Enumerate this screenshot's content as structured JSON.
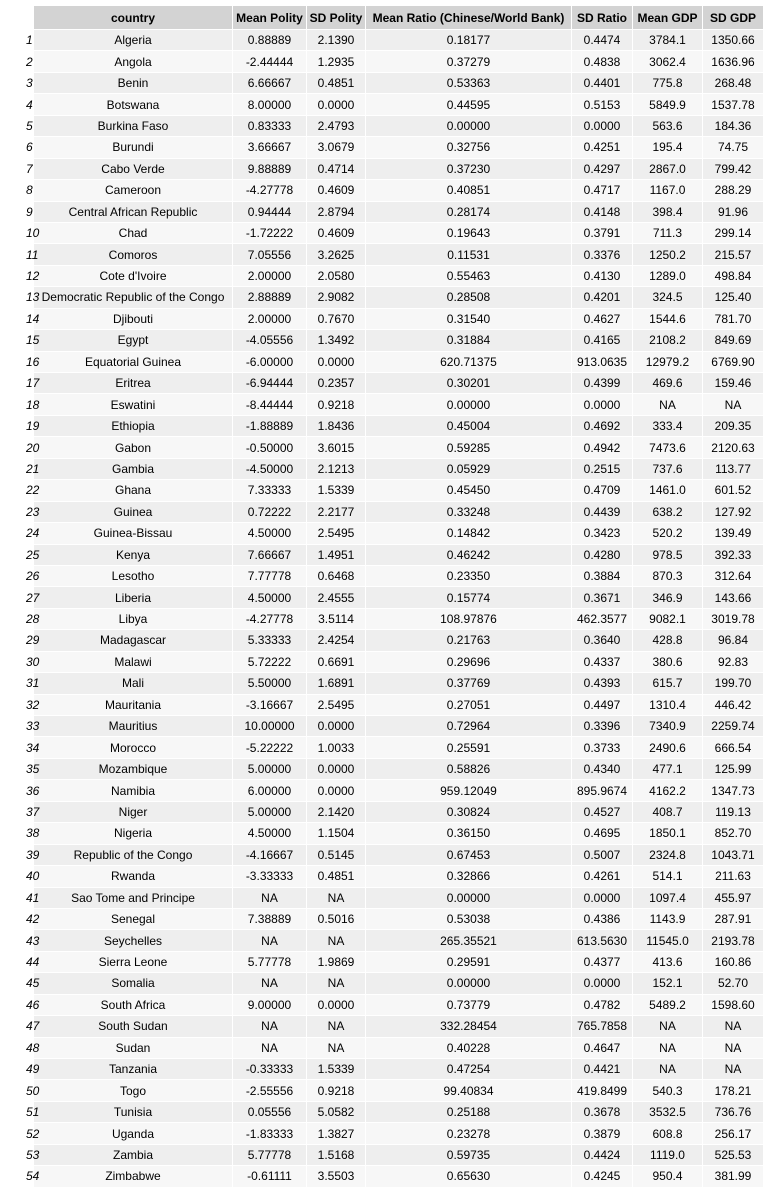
{
  "table": {
    "headers": [
      "",
      "country",
      "Mean Polity",
      "SD Polity",
      "Mean Ratio (Chinese/World Bank)",
      "SD Ratio",
      "Mean GDP",
      "SD GDP"
    ],
    "rows": [
      [
        "1",
        "Algeria",
        "0.88889",
        "2.1390",
        "0.18177",
        "0.4474",
        "3784.1",
        "1350.66"
      ],
      [
        "2",
        "Angola",
        "-2.44444",
        "1.2935",
        "0.37279",
        "0.4838",
        "3062.4",
        "1636.96"
      ],
      [
        "3",
        "Benin",
        "6.66667",
        "0.4851",
        "0.53363",
        "0.4401",
        "775.8",
        "268.48"
      ],
      [
        "4",
        "Botswana",
        "8.00000",
        "0.0000",
        "0.44595",
        "0.5153",
        "5849.9",
        "1537.78"
      ],
      [
        "5",
        "Burkina Faso",
        "0.83333",
        "2.4793",
        "0.00000",
        "0.0000",
        "563.6",
        "184.36"
      ],
      [
        "6",
        "Burundi",
        "3.66667",
        "3.0679",
        "0.32756",
        "0.4251",
        "195.4",
        "74.75"
      ],
      [
        "7",
        "Cabo Verde",
        "9.88889",
        "0.4714",
        "0.37230",
        "0.4297",
        "2867.0",
        "799.42"
      ],
      [
        "8",
        "Cameroon",
        "-4.27778",
        "0.4609",
        "0.40851",
        "0.4717",
        "1167.0",
        "288.29"
      ],
      [
        "9",
        "Central African Republic",
        "0.94444",
        "2.8794",
        "0.28174",
        "0.4148",
        "398.4",
        "91.96"
      ],
      [
        "10",
        "Chad",
        "-1.72222",
        "0.4609",
        "0.19643",
        "0.3791",
        "711.3",
        "299.14"
      ],
      [
        "11",
        "Comoros",
        "7.05556",
        "3.2625",
        "0.11531",
        "0.3376",
        "1250.2",
        "215.57"
      ],
      [
        "12",
        "Cote d'Ivoire",
        "2.00000",
        "2.0580",
        "0.55463",
        "0.4130",
        "1289.0",
        "498.84"
      ],
      [
        "13",
        "Democratic Republic of the Congo",
        "2.88889",
        "2.9082",
        "0.28508",
        "0.4201",
        "324.5",
        "125.40"
      ],
      [
        "14",
        "Djibouti",
        "2.00000",
        "0.7670",
        "0.31540",
        "0.4627",
        "1544.6",
        "781.70"
      ],
      [
        "15",
        "Egypt",
        "-4.05556",
        "1.3492",
        "0.31884",
        "0.4165",
        "2108.2",
        "849.69"
      ],
      [
        "16",
        "Equatorial Guinea",
        "-6.00000",
        "0.0000",
        "620.71375",
        "913.0635",
        "12979.2",
        "6769.90"
      ],
      [
        "17",
        "Eritrea",
        "-6.94444",
        "0.2357",
        "0.30201",
        "0.4399",
        "469.6",
        "159.46"
      ],
      [
        "18",
        "Eswatini",
        "-8.44444",
        "0.9218",
        "0.00000",
        "0.0000",
        "NA",
        "NA"
      ],
      [
        "19",
        "Ethiopia",
        "-1.88889",
        "1.8436",
        "0.45004",
        "0.4692",
        "333.4",
        "209.35"
      ],
      [
        "20",
        "Gabon",
        "-0.50000",
        "3.6015",
        "0.59285",
        "0.4942",
        "7473.6",
        "2120.63"
      ],
      [
        "21",
        "Gambia",
        "-4.50000",
        "2.1213",
        "0.05929",
        "0.2515",
        "737.6",
        "113.77"
      ],
      [
        "22",
        "Ghana",
        "7.33333",
        "1.5339",
        "0.45450",
        "0.4709",
        "1461.0",
        "601.52"
      ],
      [
        "23",
        "Guinea",
        "0.72222",
        "2.2177",
        "0.33248",
        "0.4439",
        "638.2",
        "127.92"
      ],
      [
        "24",
        "Guinea-Bissau",
        "4.50000",
        "2.5495",
        "0.14842",
        "0.3423",
        "520.2",
        "139.49"
      ],
      [
        "25",
        "Kenya",
        "7.66667",
        "1.4951",
        "0.46242",
        "0.4280",
        "978.5",
        "392.33"
      ],
      [
        "26",
        "Lesotho",
        "7.77778",
        "0.6468",
        "0.23350",
        "0.3884",
        "870.3",
        "312.64"
      ],
      [
        "27",
        "Liberia",
        "4.50000",
        "2.4555",
        "0.15774",
        "0.3671",
        "346.9",
        "143.66"
      ],
      [
        "28",
        "Libya",
        "-4.27778",
        "3.5114",
        "108.97876",
        "462.3577",
        "9082.1",
        "3019.78"
      ],
      [
        "29",
        "Madagascar",
        "5.33333",
        "2.4254",
        "0.21763",
        "0.3640",
        "428.8",
        "96.84"
      ],
      [
        "30",
        "Malawi",
        "5.72222",
        "0.6691",
        "0.29696",
        "0.4337",
        "380.6",
        "92.83"
      ],
      [
        "31",
        "Mali",
        "5.50000",
        "1.6891",
        "0.37769",
        "0.4393",
        "615.7",
        "199.70"
      ],
      [
        "32",
        "Mauritania",
        "-3.16667",
        "2.5495",
        "0.27051",
        "0.4497",
        "1310.4",
        "446.42"
      ],
      [
        "33",
        "Mauritius",
        "10.00000",
        "0.0000",
        "0.72964",
        "0.3396",
        "7340.9",
        "2259.74"
      ],
      [
        "34",
        "Morocco",
        "-5.22222",
        "1.0033",
        "0.25591",
        "0.3733",
        "2490.6",
        "666.54"
      ],
      [
        "35",
        "Mozambique",
        "5.00000",
        "0.0000",
        "0.58826",
        "0.4340",
        "477.1",
        "125.99"
      ],
      [
        "36",
        "Namibia",
        "6.00000",
        "0.0000",
        "959.12049",
        "895.9674",
        "4162.2",
        "1347.73"
      ],
      [
        "37",
        "Niger",
        "5.00000",
        "2.1420",
        "0.30824",
        "0.4527",
        "408.7",
        "119.13"
      ],
      [
        "38",
        "Nigeria",
        "4.50000",
        "1.1504",
        "0.36150",
        "0.4695",
        "1850.1",
        "852.70"
      ],
      [
        "39",
        "Republic of the Congo",
        "-4.16667",
        "0.5145",
        "0.67453",
        "0.5007",
        "2324.8",
        "1043.71"
      ],
      [
        "40",
        "Rwanda",
        "-3.33333",
        "0.4851",
        "0.32866",
        "0.4261",
        "514.1",
        "211.63"
      ],
      [
        "41",
        "Sao Tome and Principe",
        "NA",
        "NA",
        "0.00000",
        "0.0000",
        "1097.4",
        "455.97"
      ],
      [
        "42",
        "Senegal",
        "7.38889",
        "0.5016",
        "0.53038",
        "0.4386",
        "1143.9",
        "287.91"
      ],
      [
        "43",
        "Seychelles",
        "NA",
        "NA",
        "265.35521",
        "613.5630",
        "11545.0",
        "2193.78"
      ],
      [
        "44",
        "Sierra Leone",
        "5.77778",
        "1.9869",
        "0.29591",
        "0.4377",
        "413.6",
        "160.86"
      ],
      [
        "45",
        "Somalia",
        "NA",
        "NA",
        "0.00000",
        "0.0000",
        "152.1",
        "52.70"
      ],
      [
        "46",
        "South Africa",
        "9.00000",
        "0.0000",
        "0.73779",
        "0.4782",
        "5489.2",
        "1598.60"
      ],
      [
        "47",
        "South Sudan",
        "NA",
        "NA",
        "332.28454",
        "765.7858",
        "NA",
        "NA"
      ],
      [
        "48",
        "Sudan",
        "NA",
        "NA",
        "0.40228",
        "0.4647",
        "NA",
        "NA"
      ],
      [
        "49",
        "Tanzania",
        "-0.33333",
        "1.5339",
        "0.47254",
        "0.4421",
        "NA",
        "NA"
      ],
      [
        "50",
        "Togo",
        "-2.55556",
        "0.9218",
        "99.40834",
        "419.8499",
        "540.3",
        "178.21"
      ],
      [
        "51",
        "Tunisia",
        "0.05556",
        "5.0582",
        "0.25188",
        "0.3678",
        "3532.5",
        "736.76"
      ],
      [
        "52",
        "Uganda",
        "-1.83333",
        "1.3827",
        "0.23278",
        "0.3879",
        "608.8",
        "256.17"
      ],
      [
        "53",
        "Zambia",
        "5.77778",
        "1.5168",
        "0.59735",
        "0.4424",
        "1119.0",
        "525.53"
      ],
      [
        "54",
        "Zimbabwe",
        "-0.61111",
        "3.5503",
        "0.65630",
        "0.4245",
        "950.4",
        "381.99"
      ]
    ]
  }
}
